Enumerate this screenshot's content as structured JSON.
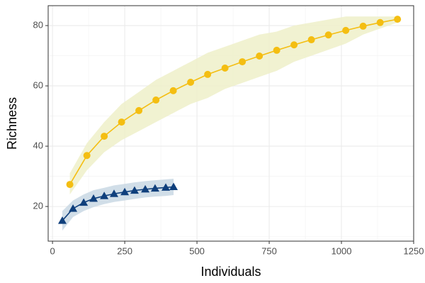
{
  "chart_data": {
    "type": "line",
    "x_label": "Individuals",
    "y_label": "Richness",
    "xlim": [
      -15,
      1250
    ],
    "xticks": [
      0,
      250,
      500,
      750,
      1000,
      1250
    ],
    "ylim": [
      8.5,
      86.6
    ],
    "yticks": [
      20,
      40,
      60,
      80
    ],
    "grid": true,
    "series": [
      {
        "color": "#f4be12",
        "band_color": "#eef0c9",
        "marker": "circle",
        "x": [
          60,
          119,
          179,
          239,
          299,
          358,
          418,
          478,
          537,
          597,
          657,
          716,
          776,
          836,
          896,
          955,
          1015,
          1075,
          1134,
          1194
        ],
        "values": [
          27.3,
          36.9,
          43.3,
          48.0,
          51.8,
          55.3,
          58.4,
          61.2,
          63.8,
          65.9,
          68.0,
          69.9,
          71.8,
          73.6,
          75.3,
          76.9,
          78.4,
          79.8,
          81.0,
          82.1
        ],
        "lower": [
          24,
          32,
          38,
          42,
          45,
          48,
          51,
          54,
          56,
          59,
          61,
          63,
          65,
          68,
          70,
          72,
          74,
          77,
          79,
          81
        ],
        "upper": [
          31,
          41,
          48,
          54,
          58,
          62,
          65,
          68,
          71,
          73,
          75,
          77,
          78,
          80,
          81,
          82,
          83,
          83,
          83,
          83
        ]
      },
      {
        "color": "#0f3f7c",
        "band_color": "#c9d8e4",
        "marker": "triangle",
        "x": [
          34,
          71,
          108,
          142,
          179,
          213,
          250,
          284,
          321,
          355,
          392,
          419
        ],
        "values": [
          15.3,
          19.3,
          21.3,
          22.6,
          23.5,
          24.2,
          24.8,
          25.3,
          25.7,
          26.0,
          26.3,
          26.5
        ],
        "lower": [
          12,
          16.5,
          18.5,
          19.8,
          20.8,
          21.5,
          22,
          22.5,
          23,
          23.3,
          23.5,
          23.8
        ],
        "upper": [
          18.5,
          22,
          24,
          25.4,
          26.2,
          27,
          27.5,
          28,
          28.4,
          28.7,
          29,
          29.2
        ]
      }
    ]
  }
}
